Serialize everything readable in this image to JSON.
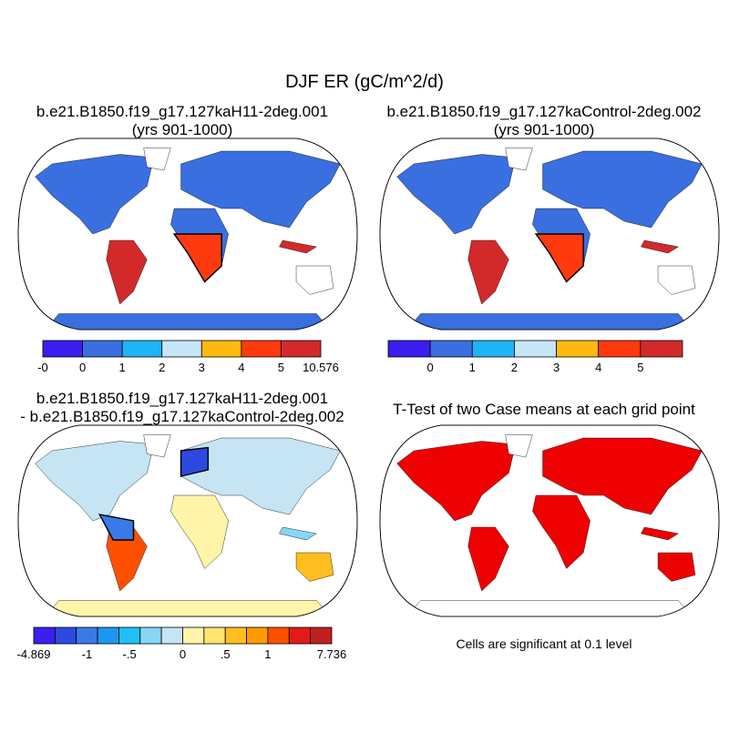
{
  "title": "DJF ER (gC/m^2/d)",
  "panels": [
    {
      "title": "b.e21.B1850.f19_g17.127kaH11-2deg.001",
      "subtitle": "(yrs 901-1000)"
    },
    {
      "title": "b.e21.B1850.f19_g17.127kaControl-2deg.002",
      "subtitle": "(yrs 901-1000)"
    },
    {
      "title": "b.e21.B1850.f19_g17.127kaH11-2deg.001",
      "subtitle": "- b.e21.B1850.f19_g17.127kaControl-2deg.002"
    },
    {
      "title": "T-Test of two Case means at each grid point"
    }
  ],
  "colorbars": [
    {
      "colors": [
        "#3a1ff0",
        "#3a6fe0",
        "#1eb4f5",
        "#c6e6f6",
        "#ffb90f",
        "#ff3a0f",
        "#d22a2a"
      ],
      "labels": [
        "-0",
        "0",
        "1",
        "2",
        "3",
        "4",
        "5",
        "10.576"
      ]
    },
    {
      "colors": [
        "#3a1ff0",
        "#3a6fe0",
        "#1eb4f5",
        "#c6e6f6",
        "#ffb90f",
        "#ff3a0f",
        "#d22a2a"
      ],
      "labels": [
        "0",
        "1",
        "2",
        "3",
        "4",
        "5"
      ]
    },
    {
      "colors": [
        "#3c1ff0",
        "#2e49e0",
        "#3a7ae8",
        "#1e96f0",
        "#1ec0f5",
        "#86d6f5",
        "#c5e5f5",
        "#fff4a8",
        "#ffe470",
        "#ffbe1e",
        "#ff9a00",
        "#ff5000",
        "#e41a1a",
        "#c02020"
      ],
      "labels": [
        "-4.869",
        "-1",
        "-.5",
        "0",
        ".5",
        "1",
        "7.736"
      ]
    }
  ],
  "note": "Cells are significant at 0.1 level"
}
